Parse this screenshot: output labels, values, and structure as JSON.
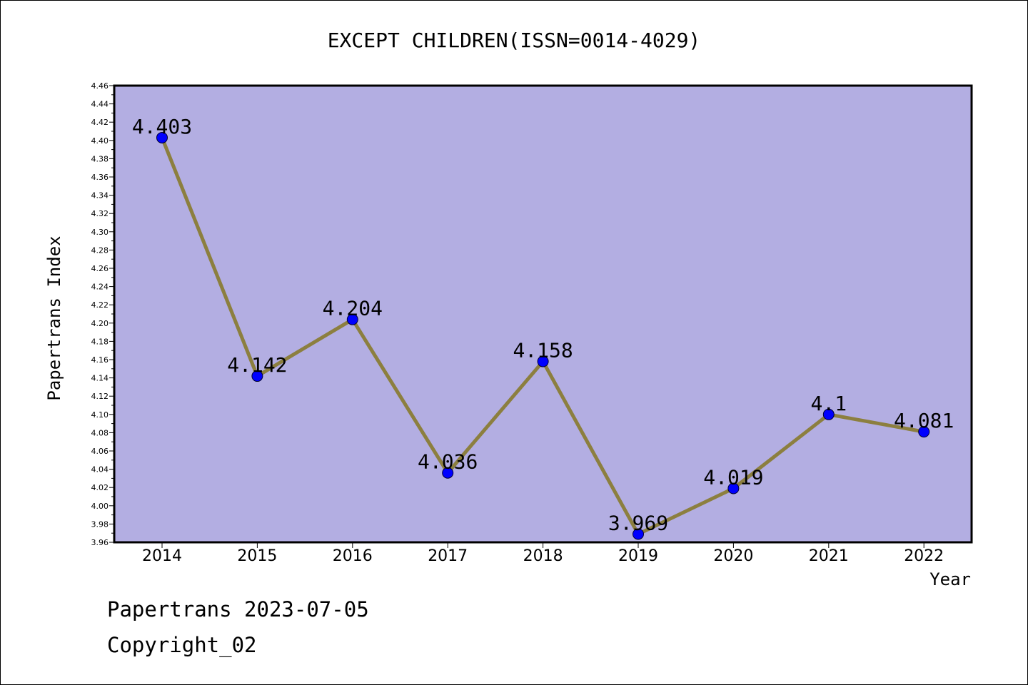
{
  "chart_data": {
    "type": "line",
    "title": "EXCEPT CHILDREN(ISSN=0014-4029)",
    "xlabel": "Year",
    "ylabel": "Papertrans Index",
    "categories": [
      "2014",
      "2015",
      "2016",
      "2017",
      "2018",
      "2019",
      "2020",
      "2021",
      "2022"
    ],
    "values": [
      4.403,
      4.142,
      4.204,
      4.036,
      4.158,
      3.969,
      4.019,
      4.1,
      4.081
    ],
    "data_labels": [
      "4.403",
      "4.142",
      "4.204",
      "4.036",
      "4.158",
      "3.969",
      "4.019",
      "4.1",
      "4.081"
    ],
    "ylim": [
      3.96,
      4.46
    ],
    "y_ticks": [
      "3.96",
      "3.98",
      "4.00",
      "4.02",
      "4.04",
      "4.06",
      "4.08",
      "4.10",
      "4.12",
      "4.14",
      "4.16",
      "4.18",
      "4.20",
      "4.22",
      "4.24",
      "4.26",
      "4.28",
      "4.30",
      "4.32",
      "4.34",
      "4.36",
      "4.38",
      "4.40",
      "4.42",
      "4.44",
      "4.46"
    ],
    "grid": false,
    "legend": "none",
    "colors": {
      "plot_background": "#b3aee2",
      "line": "#8c7f3f",
      "marker": "#0000ff"
    }
  },
  "footer": {
    "line1": "Papertrans 2023-07-05",
    "line2": "Copyright_02"
  }
}
